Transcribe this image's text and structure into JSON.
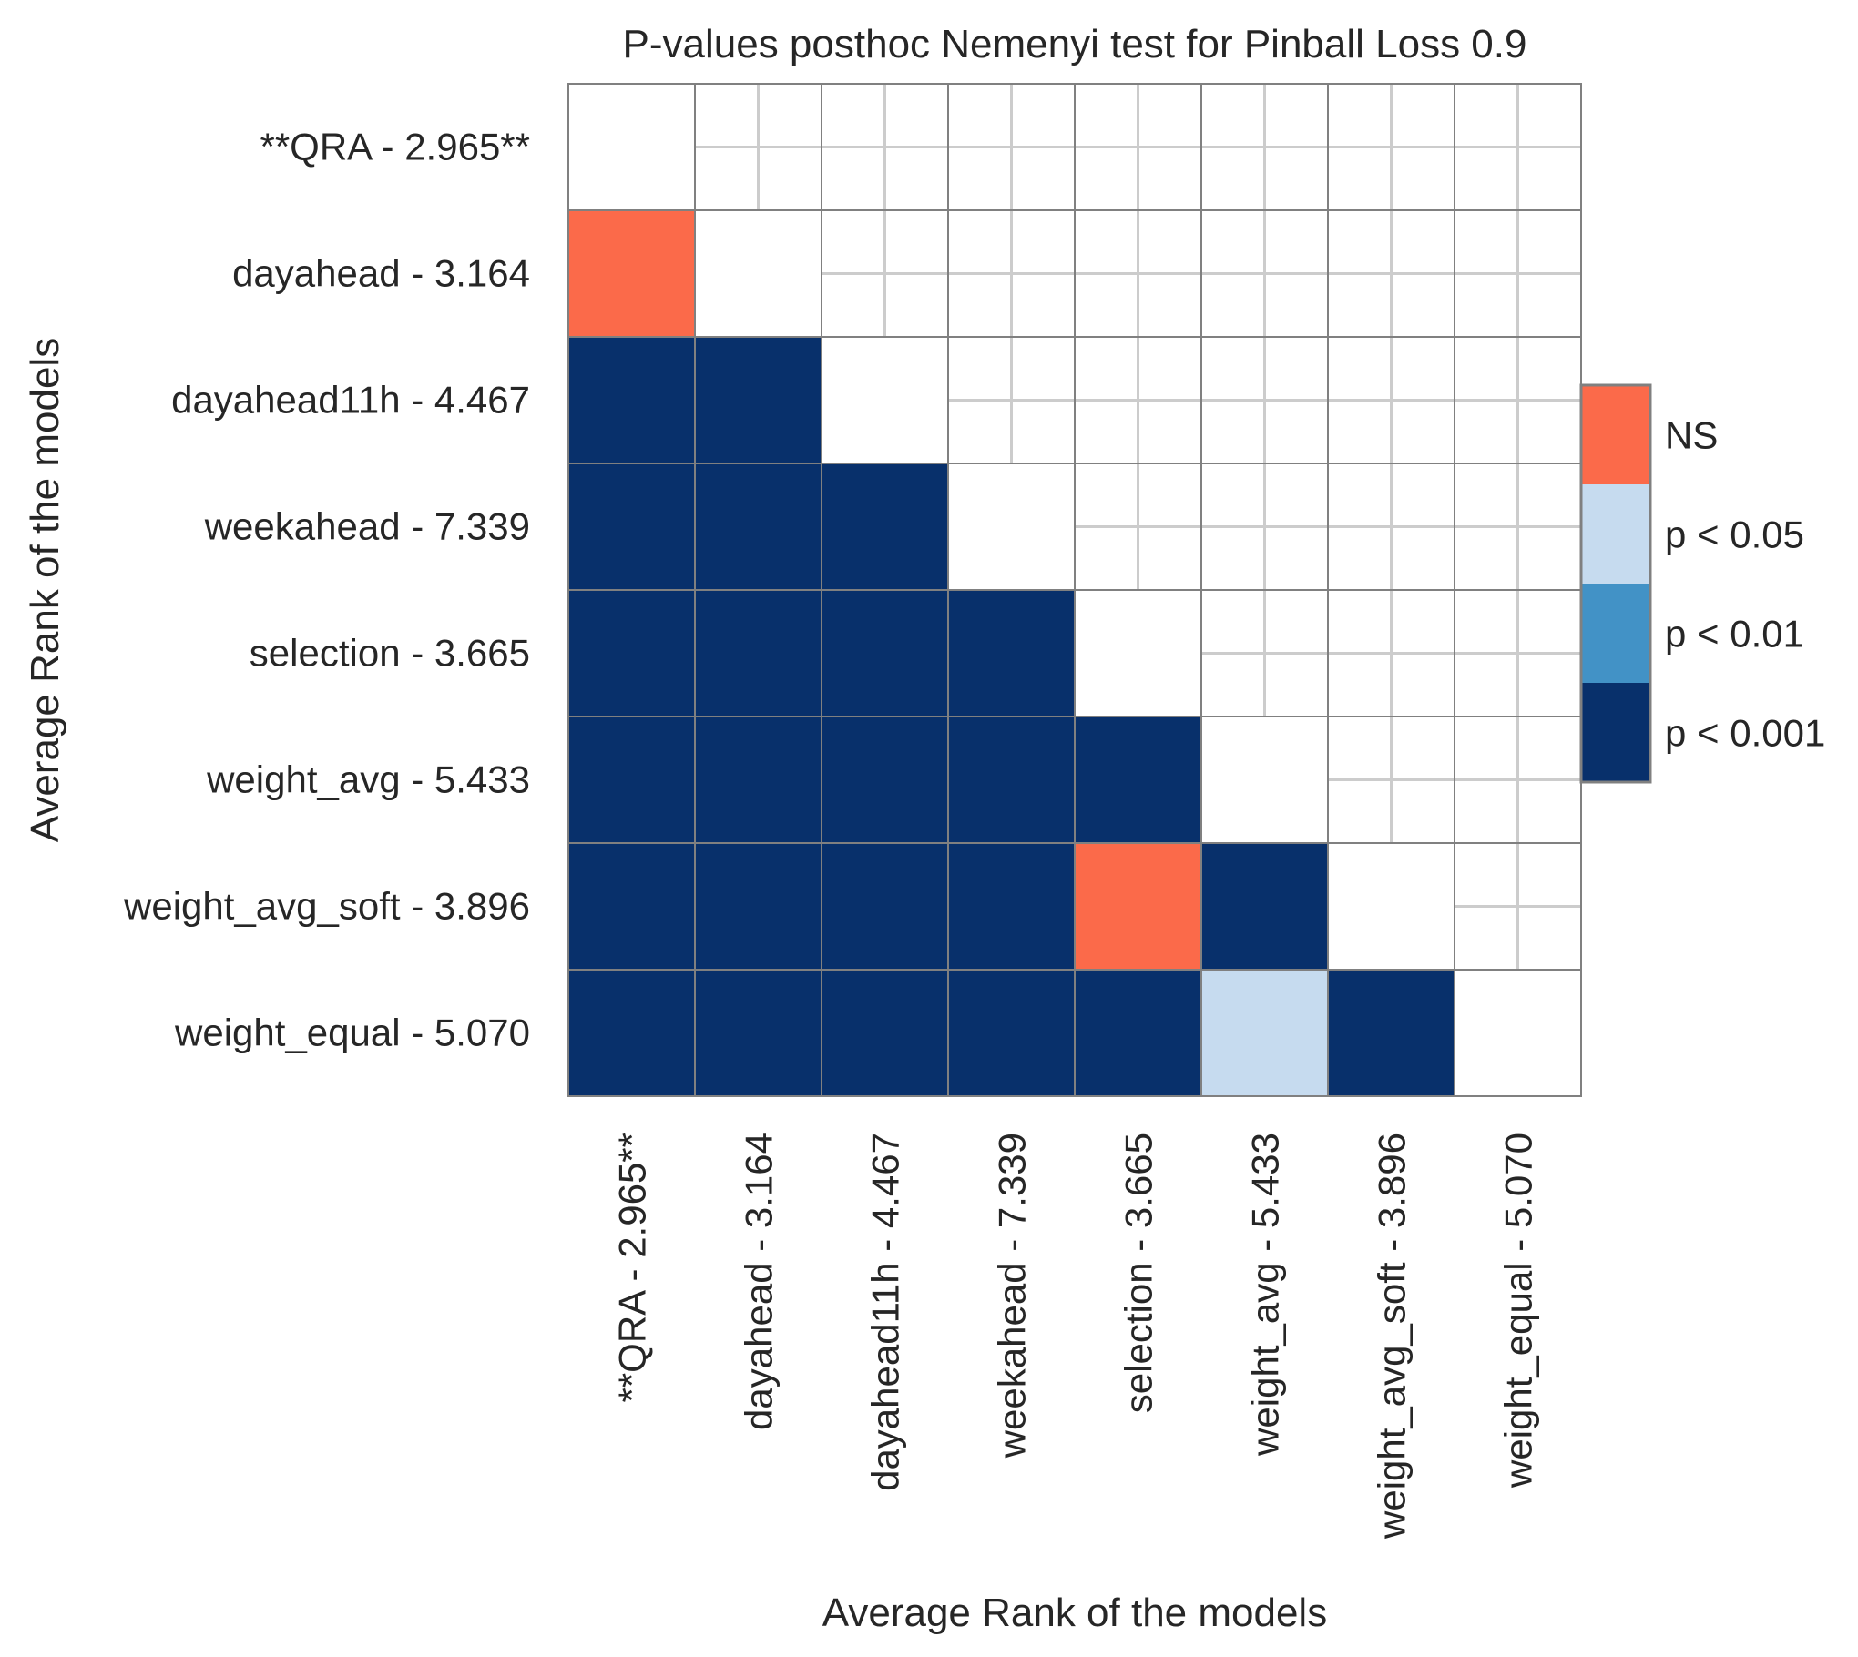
{
  "chart_data": {
    "type": "heatmap",
    "title": "P-values posthoc Nemenyi test for Pinball Loss 0.9",
    "xlabel": "Average Rank of the models",
    "ylabel": "Average Rank of the models",
    "labels": [
      "**QRA - 2.965**",
      "dayahead - 3.164",
      "dayahead11h - 4.467",
      "weekahead - 7.339",
      "selection - 3.665",
      "weight_avg - 5.433",
      "weight_avg_soft - 3.896",
      "weight_equal - 5.070"
    ],
    "mask": "upper-triangle-and-diagonal",
    "matrix": [
      [
        null,
        null,
        null,
        null,
        null,
        null,
        null,
        null
      ],
      [
        "NS",
        null,
        null,
        null,
        null,
        null,
        null,
        null
      ],
      [
        "p < 0.001",
        "p < 0.001",
        null,
        null,
        null,
        null,
        null,
        null
      ],
      [
        "p < 0.001",
        "p < 0.001",
        "p < 0.001",
        null,
        null,
        null,
        null,
        null
      ],
      [
        "p < 0.001",
        "p < 0.001",
        "p < 0.001",
        "p < 0.001",
        null,
        null,
        null,
        null
      ],
      [
        "p < 0.001",
        "p < 0.001",
        "p < 0.001",
        "p < 0.001",
        "p < 0.001",
        null,
        null,
        null
      ],
      [
        "p < 0.001",
        "p < 0.001",
        "p < 0.001",
        "p < 0.001",
        "NS",
        "p < 0.001",
        null,
        null
      ],
      [
        "p < 0.001",
        "p < 0.001",
        "p < 0.001",
        "p < 0.001",
        "p < 0.001",
        "p < 0.05",
        "p < 0.001",
        null
      ]
    ],
    "legend": [
      {
        "label": "NS",
        "color": "#fb6a4a"
      },
      {
        "label": "p < 0.05",
        "color": "#c6dbef"
      },
      {
        "label": "p < 0.01",
        "color": "#4292c6"
      },
      {
        "label": "p < 0.001",
        "color": "#08306b"
      }
    ],
    "legend_position": "right"
  }
}
